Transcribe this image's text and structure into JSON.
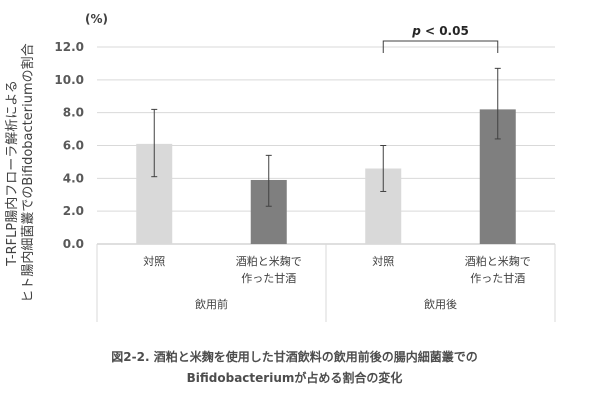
{
  "chart_data": {
    "type": "bar",
    "unit_label": "(%)",
    "ylabel_line1": "T-RFLP腸内フローラ解析による",
    "ylabel_line2": "ヒト腸内細菌叢でのBifidobacteriumの割合",
    "ylim": [
      0,
      12
    ],
    "yticks": [
      "0.0",
      "2.0",
      "4.0",
      "6.0",
      "8.0",
      "10.0",
      "12.0"
    ],
    "ytick_values": [
      0,
      2,
      4,
      6,
      8,
      10,
      12
    ],
    "grid": true,
    "groups": [
      {
        "label": "飲用前",
        "categories": [
          "対照",
          "酒粕と米麹で作った甘酒"
        ]
      },
      {
        "label": "飲用後",
        "categories": [
          "対照",
          "酒粕と米麹で作った甘酒"
        ]
      }
    ],
    "category_lines": [
      [
        "対照"
      ],
      [
        "酒粕と米麹で",
        "作った甘酒"
      ],
      [
        "対照"
      ],
      [
        "酒粕と米麹で",
        "作った甘酒"
      ]
    ],
    "values": [
      6.1,
      3.9,
      4.6,
      8.2
    ],
    "error_low": [
      4.1,
      2.3,
      3.2,
      6.4
    ],
    "error_high": [
      8.2,
      5.4,
      6.0,
      10.7
    ],
    "bar_colors": [
      "#d9d9d9",
      "#7f7f7f",
      "#d9d9d9",
      "#7f7f7f"
    ],
    "annotation": {
      "p_label": "p",
      "p_rest": " < 0.05",
      "between": [
        2,
        3
      ]
    }
  },
  "caption": {
    "line1": "図2-2. 酒粕と米麹を使用した甘酒飲料の飲用前後の腸内細菌叢での",
    "line2": "Bifidobacteriumが占める割合の変化"
  }
}
